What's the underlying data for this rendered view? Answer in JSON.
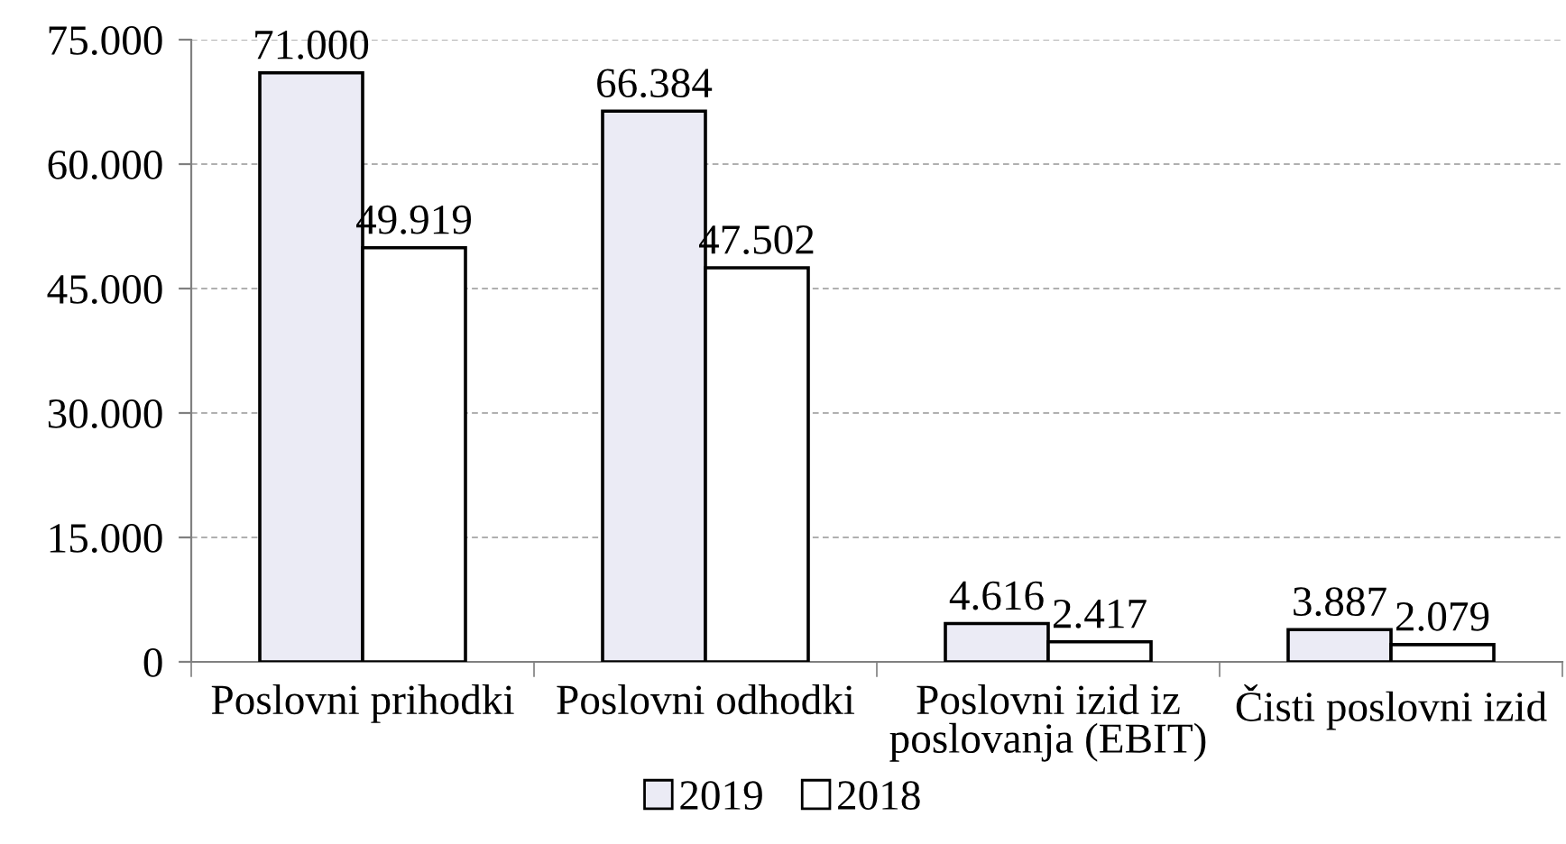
{
  "chart_data": {
    "type": "bar",
    "categories": [
      "Poslovni prihodki",
      "Poslovni odhodki",
      "Poslovni izid iz poslovanja (EBIT)",
      "Čisti poslovni izid"
    ],
    "series": [
      {
        "name": "2019",
        "color": "#ebebf5",
        "values": [
          71000,
          66384,
          4616,
          3887
        ],
        "value_labels": [
          "71.000",
          "66.384",
          "4.616",
          "3.887"
        ]
      },
      {
        "name": "2018",
        "color": "#ffffff",
        "values": [
          49919,
          47502,
          2417,
          2079
        ],
        "value_labels": [
          "49.919",
          "47.502",
          "2.417",
          "2.079"
        ]
      }
    ],
    "ylim": [
      0,
      75000
    ],
    "yticks": [
      0,
      {
        "value": 15000,
        "label": "15.000"
      },
      {
        "value": 30000,
        "label": "30.000"
      },
      {
        "value": 45000,
        "label": "45.000"
      },
      {
        "value": 60000,
        "label": "60.000"
      },
      {
        "value": 75000,
        "label": "75.000"
      }
    ],
    "grid": "y",
    "legend": "bottom"
  }
}
